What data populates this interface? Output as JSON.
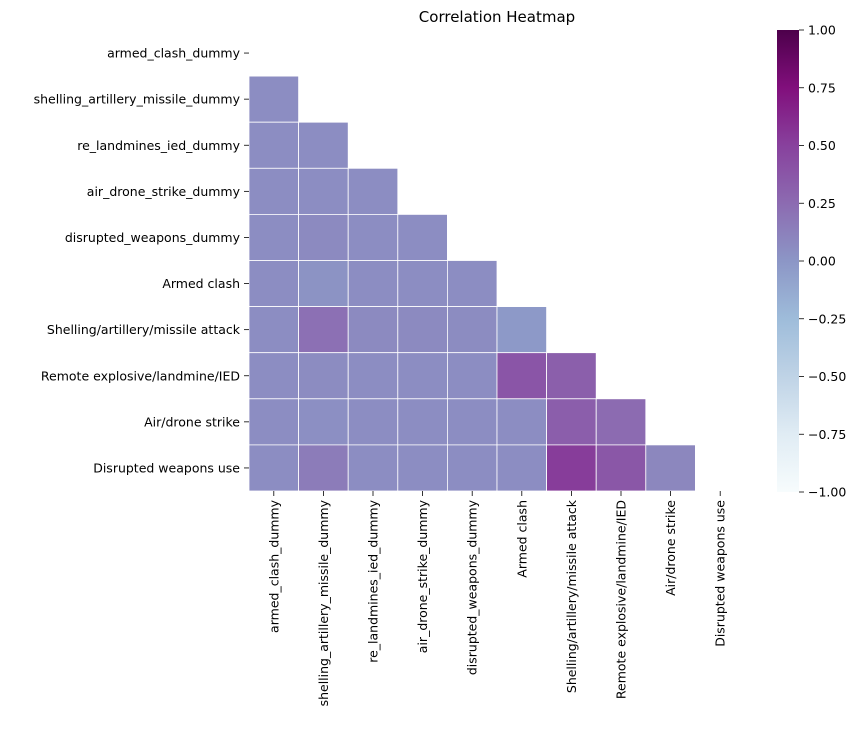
{
  "chart_data": {
    "type": "heatmap",
    "title": "Correlation Heatmap",
    "xlabel": "",
    "ylabel": "",
    "mask": "upper-triangle-including-diagonal",
    "row_labels": [
      "armed_clash_dummy",
      "shelling_artillery_missile_dummy",
      "re_landmines_ied_dummy",
      "air_drone_strike_dummy",
      "disrupted_weapons_dummy",
      "Armed clash",
      "Shelling/artillery/missile attack",
      "Remote explosive/landmine/IED",
      "Air/drone strike",
      "Disrupted weapons use"
    ],
    "col_labels": [
      "armed_clash_dummy",
      "shelling_artillery_missile_dummy",
      "re_landmines_ied_dummy",
      "air_drone_strike_dummy",
      "disrupted_weapons_dummy",
      "Armed clash",
      "Shelling/artillery/missile attack",
      "Remote explosive/landmine/IED",
      "Air/drone strike",
      "Disrupted weapons use"
    ],
    "values": [
      [
        null,
        null,
        null,
        null,
        null,
        null,
        null,
        null,
        null,
        null
      ],
      [
        0.05,
        null,
        null,
        null,
        null,
        null,
        null,
        null,
        null,
        null
      ],
      [
        0.05,
        0.05,
        null,
        null,
        null,
        null,
        null,
        null,
        null,
        null
      ],
      [
        0.05,
        0.05,
        0.05,
        null,
        null,
        null,
        null,
        null,
        null,
        null
      ],
      [
        0.05,
        0.07,
        0.05,
        0.05,
        null,
        null,
        null,
        null,
        null,
        null
      ],
      [
        0.05,
        0.02,
        0.05,
        0.05,
        0.05,
        null,
        null,
        null,
        null,
        null
      ],
      [
        0.05,
        0.22,
        0.07,
        0.07,
        0.06,
        -0.02,
        null,
        null,
        null,
        null
      ],
      [
        0.05,
        0.06,
        0.05,
        0.05,
        0.05,
        0.38,
        0.32,
        null,
        null,
        null
      ],
      [
        0.05,
        0.04,
        0.05,
        0.05,
        0.05,
        0.05,
        0.33,
        0.25,
        null,
        null
      ],
      [
        0.05,
        0.15,
        0.05,
        0.05,
        0.05,
        0.05,
        0.52,
        0.37,
        0.09,
        null
      ]
    ],
    "colorbar": {
      "colormap": "BuPu",
      "range": [
        -1.0,
        1.0
      ],
      "ticks": [
        "1.00",
        "0.75",
        "0.50",
        "0.25",
        "0.00",
        "−0.25",
        "−0.50",
        "−0.75",
        "−1.00"
      ]
    },
    "grid": false
  }
}
